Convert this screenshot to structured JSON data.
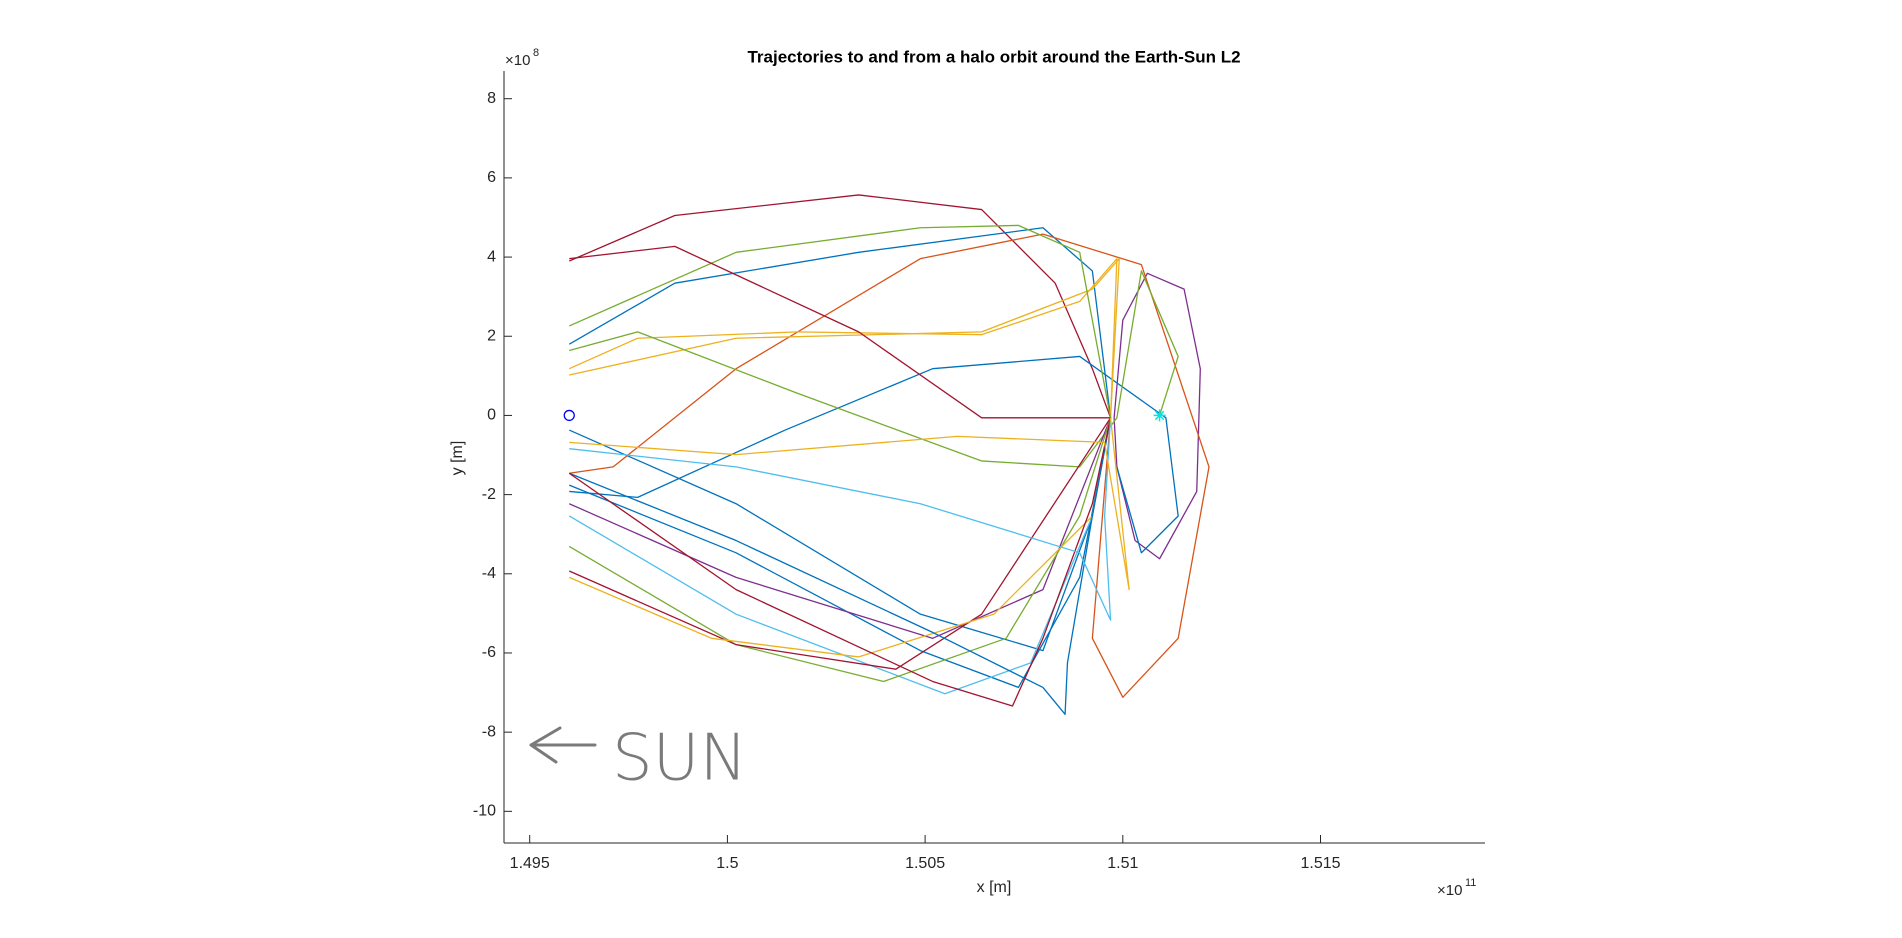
{
  "chart_data": {
    "type": "line",
    "title": "Trajectories to and from a halo orbit around the Earth-Sun L2",
    "xlabel": "x [m]",
    "ylabel": "y [m]",
    "x_multiplier": {
      "base": "×10",
      "exponent": "11"
    },
    "y_multiplier": {
      "base": "×10",
      "exponent": "8"
    },
    "xlim": [
      149435000000.0,
      151916000000.0
    ],
    "ylim": [
      -1080000000.0,
      870000000.0
    ],
    "xticks": [
      {
        "value": 149500000000.0,
        "label": "1.495"
      },
      {
        "value": 150000000000.0,
        "label": "1.5"
      },
      {
        "value": 150500000000.0,
        "label": "1.505"
      },
      {
        "value": 151000000000.0,
        "label": "1.51"
      },
      {
        "value": 151500000000.0,
        "label": "1.515"
      }
    ],
    "yticks": [
      {
        "value": 800000000.0,
        "label": "8"
      },
      {
        "value": 600000000.0,
        "label": "6"
      },
      {
        "value": 400000000.0,
        "label": "4"
      },
      {
        "value": 200000000.0,
        "label": "2"
      },
      0,
      {
        "value": -200000000.0,
        "label": "-2"
      },
      {
        "value": -400000000.0,
        "label": "-4"
      },
      {
        "value": -600000000.0,
        "label": "-6"
      },
      {
        "value": -800000000.0,
        "label": "-8"
      },
      {
        "value": -1000000000.0,
        "label": "-10"
      }
    ],
    "grid": false,
    "series": [
      {
        "color": "#A2142F",
        "x": [
          149600000000.0,
          149867000000.0,
          150332000000.0,
          150643000000.0,
          150829000000.0,
          150923000000.0,
          150969000000.0
        ],
        "values": [
          390000000.0,
          505000000.0,
          557000000.0,
          520000000.0,
          334000000.0,
          118000000.0,
          -6000000.0
        ]
      },
      {
        "color": "#0072BD",
        "x": [
          149600000000.0,
          149867000000.0,
          150332000000.0,
          150798000000.0,
          150923000000.0,
          150969000000.0
        ],
        "values": [
          180000000.0,
          334000000.0,
          412000000.0,
          474000000.0,
          365000000.0,
          -6000000.0
        ]
      },
      {
        "color": "#7E2F8E",
        "x": [
          150978000000.0,
          151000000000.0,
          151062000000.0,
          151155000000.0,
          151196000000.0,
          151187000000.0,
          151093000000.0,
          151031000000.0,
          150985000000.0,
          150978000000.0
        ],
        "values": [
          -6000000.0,
          241000000.0,
          359000000.0,
          319000000.0,
          118000000.0,
          -192000000.0,
          -362000000.0,
          -316000000.0,
          -130000000.0,
          -6000000.0
        ]
      },
      {
        "color": "#D95319",
        "x": [
          149600000000.0,
          149711000000.0,
          150022000000.0,
          150488000000.0,
          150798000000.0,
          151047000000.0,
          151218000000.0,
          151140000000.0,
          151000000000.0,
          150923000000.0,
          150969000000.0
        ],
        "values": [
          -146000000.0,
          -130000000.0,
          118000000.0,
          396000000.0,
          458000000.0,
          381000000.0,
          -130000000.0,
          -563000000.0,
          -712000000.0,
          -563000000.0,
          -6000000.0
        ]
      },
      {
        "color": "#0072BD",
        "x": [
          149600000000.0,
          149773000000.0,
          150146000000.0,
          150519000000.0,
          150891000000.0,
          151109000000.0,
          151140000000.0,
          151047000000.0,
          150985000000.0
        ],
        "values": [
          -192000000.0,
          -207000000.0,
          -37000000.0,
          118000000.0,
          149000000.0,
          -6000000.0,
          -254000000.0,
          -347000000.0,
          -130000000.0
        ]
      },
      {
        "color": "#EDB120",
        "x": [
          149600000000.0,
          149773000000.0,
          150177000000.0,
          150643000000.0,
          150891000000.0,
          150985000000.0,
          150969000000.0
        ],
        "values": [
          118000000.0,
          195000000.0,
          211000000.0,
          204000000.0,
          288000000.0,
          396000000.0,
          -6000000.0
        ]
      },
      {
        "color": "#EDB120",
        "x": [
          149600000000.0,
          150022000000.0,
          150643000000.0,
          150923000000.0,
          150991000000.0,
          150969000000.0
        ],
        "values": [
          102000000.0,
          195000000.0,
          211000000.0,
          319000000.0,
          396000000.0,
          -6000000.0
        ]
      },
      {
        "color": "#77AC30",
        "x": [
          149600000000.0,
          150022000000.0,
          150488000000.0,
          150736000000.0,
          150891000000.0,
          150969000000.0
        ],
        "values": [
          226000000.0,
          412000000.0,
          474000000.0,
          480000000.0,
          412000000.0,
          -6000000.0
        ]
      },
      {
        "color": "#77AC30",
        "x": [
          149600000000.0,
          149773000000.0,
          150177000000.0,
          150643000000.0,
          150891000000.0,
          150985000000.0,
          151047000000.0,
          151140000000.0,
          151093000000.0
        ],
        "values": [
          164000000.0,
          211000000.0,
          56000000.0,
          -115000000.0,
          -130000000.0,
          -6000000.0,
          365000000.0,
          149000000.0,
          0
        ]
      },
      {
        "color": "#A2142F",
        "x": [
          149600000000.0,
          149867000000.0,
          150332000000.0,
          150643000000.0,
          150860000000.0,
          150969000000.0
        ],
        "values": [
          396000000.0,
          427000000.0,
          211000000.0,
          -6000000.0,
          -6000000.0,
          -6000000.0
        ]
      },
      {
        "color": "#0072BD",
        "x": [
          149600000000.0,
          150022000000.0,
          150488000000.0,
          150798000000.0,
          150923000000.0,
          150969000000.0
        ],
        "values": [
          -37000000.0,
          -223000000.0,
          -502000000.0,
          -594000000.0,
          -254000000.0,
          -6000000.0
        ]
      },
      {
        "color": "#0072BD",
        "x": [
          149600000000.0,
          150022000000.0,
          150488000000.0,
          150736000000.0,
          150891000000.0,
          150969000000.0
        ],
        "values": [
          -176000000.0,
          -347000000.0,
          -594000000.0,
          -687000000.0,
          -409000000.0,
          -6000000.0
        ]
      },
      {
        "color": "#4DBEEE",
        "x": [
          149600000000.0,
          150022000000.0,
          150550000000.0,
          150767000000.0,
          150923000000.0,
          150969000000.0
        ],
        "values": [
          -254000000.0,
          -502000000.0,
          -703000000.0,
          -625000000.0,
          -254000000.0,
          -6000000.0
        ]
      },
      {
        "color": "#7E2F8E",
        "x": [
          149600000000.0,
          150022000000.0,
          150519000000.0,
          150798000000.0,
          150969000000.0
        ],
        "values": [
          -223000000.0,
          -409000000.0,
          -563000000.0,
          -440000000.0,
          -6000000.0
        ]
      },
      {
        "color": "#77AC30",
        "x": [
          149600000000.0,
          150022000000.0,
          150395000000.0,
          150705000000.0,
          150891000000.0,
          150969000000.0
        ],
        "values": [
          -331000000.0,
          -579000000.0,
          -672000000.0,
          -563000000.0,
          -254000000.0,
          -6000000.0
        ]
      },
      {
        "color": "#A2142F",
        "x": [
          149600000000.0,
          150022000000.0,
          150426000000.0,
          150643000000.0,
          150969000000.0
        ],
        "values": [
          -393000000.0,
          -579000000.0,
          -641000000.0,
          -502000000.0,
          -6000000.0
        ]
      },
      {
        "color": "#EDB120",
        "x": [
          149600000000.0,
          149960000000.0,
          150332000000.0,
          150674000000.0,
          150923000000.0,
          150969000000.0
        ],
        "values": [
          -409000000.0,
          -563000000.0,
          -610000000.0,
          -502000000.0,
          -254000000.0,
          -6000000.0
        ]
      },
      {
        "color": "#0072BD",
        "x": [
          149600000000.0,
          150022000000.0,
          150519000000.0,
          150798000000.0,
          150854000000.0,
          150860000000.0,
          150923000000.0,
          150969000000.0
        ],
        "values": [
          -146000000.0,
          -316000000.0,
          -548000000.0,
          -687000000.0,
          -755000000.0,
          -625000000.0,
          -254000000.0,
          -6000000.0
        ]
      },
      {
        "color": "#A2142F",
        "x": [
          149600000000.0,
          150022000000.0,
          150519000000.0,
          150721000000.0,
          150798000000.0,
          150923000000.0,
          150969000000.0
        ],
        "values": [
          -146000000.0,
          -440000000.0,
          -672000000.0,
          -734000000.0,
          -563000000.0,
          -223000000.0,
          -6000000.0
        ]
      },
      {
        "color": "#4DBEEE",
        "x": [
          149600000000.0,
          150022000000.0,
          150488000000.0,
          150891000000.0,
          150969000000.0,
          150954000000.0,
          150969000000.0
        ],
        "values": [
          -84000000.0,
          -130000000.0,
          -223000000.0,
          -347000000.0,
          -517000000.0,
          -254000000.0,
          -6000000.0
        ]
      },
      {
        "color": "#EDB120",
        "x": [
          149600000000.0,
          150022000000.0,
          150581000000.0,
          150954000000.0,
          150985000000.0,
          151016000000.0,
          150969000000.0
        ],
        "values": [
          -68000000.0,
          -99000000.0,
          -53000000.0,
          -68000000.0,
          -254000000.0,
          -440000000.0,
          -6000000.0
        ]
      }
    ],
    "markers": [
      {
        "shape": "circle",
        "color": "#0000FF",
        "x": 149600000000.0,
        "y": 0
      },
      {
        "shape": "star",
        "color": "#00E5E5",
        "x": 151093000000.0,
        "y": 0
      }
    ],
    "annotation": "SUN"
  }
}
